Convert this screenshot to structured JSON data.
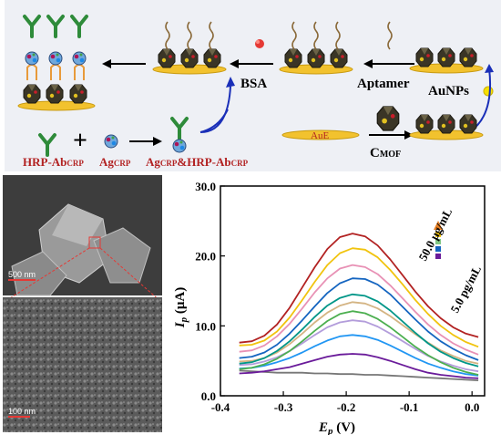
{
  "scheme": {
    "label_bsa": "BSA",
    "label_aptamer": "Aptamer",
    "label_aunps": "AuNPs",
    "label_aue": "AuE",
    "label_cmof": "C",
    "label_cmof_sub": "MOF",
    "label_hrp": "HRP-Ab",
    "label_hrp_sub": "CRP",
    "label_ag": "Ag",
    "label_ag_sub": "CRP",
    "label_complex_a": "Ag",
    "label_complex_a_sub": "CRP",
    "label_complex_b": "&HRP-Ab",
    "label_complex_b_sub": "CRP",
    "plus": "+"
  },
  "sem": {
    "scale_top": "500 nm",
    "scale_bottom": "100 nm"
  },
  "chart_data": {
    "type": "line",
    "ylabel_main": "I",
    "ylabel_sub": "p",
    "ylabel_unit": " (μA)",
    "xlabel_main": "E",
    "xlabel_sub": "p",
    "xlabel_unit": " (V)",
    "xlim": [
      -0.4,
      0.02
    ],
    "ylim": [
      0,
      30
    ],
    "xticks": [
      "-0.4",
      "-0.3",
      "-0.2",
      "-0.1",
      "0.0"
    ],
    "yticks": [
      "0.0",
      "10.0",
      "20.0",
      "30.0"
    ],
    "x": [
      -0.37,
      -0.35,
      -0.33,
      -0.31,
      -0.29,
      -0.27,
      -0.25,
      -0.23,
      -0.21,
      -0.19,
      -0.17,
      -0.15,
      -0.13,
      -0.11,
      -0.09,
      -0.07,
      -0.05,
      -0.03,
      -0.01,
      0.01
    ],
    "series": [
      {
        "color": "#777777",
        "values": [
          3.6,
          3.5,
          3.4,
          3.3,
          3.3,
          3.3,
          3.2,
          3.2,
          3.1,
          3.1,
          3.0,
          3.0,
          2.9,
          2.8,
          2.7,
          2.6,
          2.5,
          2.4,
          2.3,
          2.2
        ]
      },
      {
        "color": "#6a1b9a",
        "values": [
          3.2,
          3.3,
          3.5,
          3.8,
          4.1,
          4.6,
          5.1,
          5.6,
          5.9,
          6.0,
          5.9,
          5.5,
          5.0,
          4.4,
          3.8,
          3.3,
          3.0,
          2.8,
          2.6,
          2.5
        ]
      },
      {
        "color": "#2196f3",
        "values": [
          3.9,
          4.0,
          4.3,
          4.8,
          5.4,
          6.2,
          7.1,
          7.9,
          8.5,
          8.7,
          8.5,
          8.0,
          7.2,
          6.3,
          5.4,
          4.6,
          4.0,
          3.5,
          3.1,
          2.9
        ]
      },
      {
        "color": "#b39ddb",
        "values": [
          4.4,
          4.5,
          4.9,
          5.5,
          6.4,
          7.5,
          8.7,
          9.8,
          10.5,
          10.8,
          10.6,
          9.9,
          8.9,
          7.8,
          6.7,
          5.7,
          4.9,
          4.3,
          3.8,
          3.5
        ]
      },
      {
        "color": "#4caf50",
        "values": [
          3.8,
          4.0,
          4.5,
          5.3,
          6.4,
          7.8,
          9.3,
          10.7,
          11.7,
          12.1,
          11.8,
          11.0,
          9.8,
          8.4,
          7.0,
          5.8,
          4.8,
          4.0,
          3.4,
          3.0
        ]
      },
      {
        "color": "#d4b483",
        "values": [
          4.9,
          5.0,
          5.4,
          6.2,
          7.4,
          8.9,
          10.5,
          11.9,
          12.9,
          13.4,
          13.2,
          12.5,
          11.4,
          10.1,
          8.8,
          7.6,
          6.5,
          5.7,
          5.0,
          4.6
        ]
      },
      {
        "color": "#009688",
        "values": [
          4.6,
          4.8,
          5.4,
          6.4,
          7.8,
          9.5,
          11.3,
          12.9,
          14.0,
          14.5,
          14.3,
          13.5,
          12.2,
          10.6,
          9.0,
          7.5,
          6.3,
          5.4,
          4.7,
          4.2
        ]
      },
      {
        "color": "#1565c0",
        "values": [
          5.4,
          5.6,
          6.2,
          7.3,
          8.9,
          10.8,
          12.8,
          14.7,
          16.1,
          16.8,
          16.7,
          15.9,
          14.5,
          12.7,
          10.9,
          9.2,
          7.8,
          6.7,
          5.8,
          5.1
        ]
      },
      {
        "color": "#e891b5",
        "values": [
          6.3,
          6.5,
          7.2,
          8.5,
          10.3,
          12.5,
          14.8,
          16.8,
          18.2,
          18.7,
          18.4,
          17.4,
          15.8,
          13.9,
          12.0,
          10.2,
          8.7,
          7.5,
          6.6,
          5.9
        ]
      },
      {
        "color": "#f1c40f",
        "values": [
          7.2,
          7.3,
          7.9,
          9.2,
          11.2,
          13.7,
          16.3,
          18.7,
          20.4,
          21.1,
          20.9,
          19.8,
          18.0,
          15.9,
          13.7,
          11.7,
          10.0,
          8.7,
          7.7,
          7.0
        ]
      },
      {
        "color": "#b22222",
        "values": [
          7.6,
          7.8,
          8.6,
          10.2,
          12.6,
          15.5,
          18.4,
          21.0,
          22.7,
          23.2,
          22.8,
          21.5,
          19.5,
          17.2,
          14.9,
          12.8,
          11.1,
          9.8,
          8.9,
          8.4
        ]
      }
    ],
    "annotation_high": "50.0 μg/mL",
    "annotation_low": "5.0 pg/mL"
  }
}
